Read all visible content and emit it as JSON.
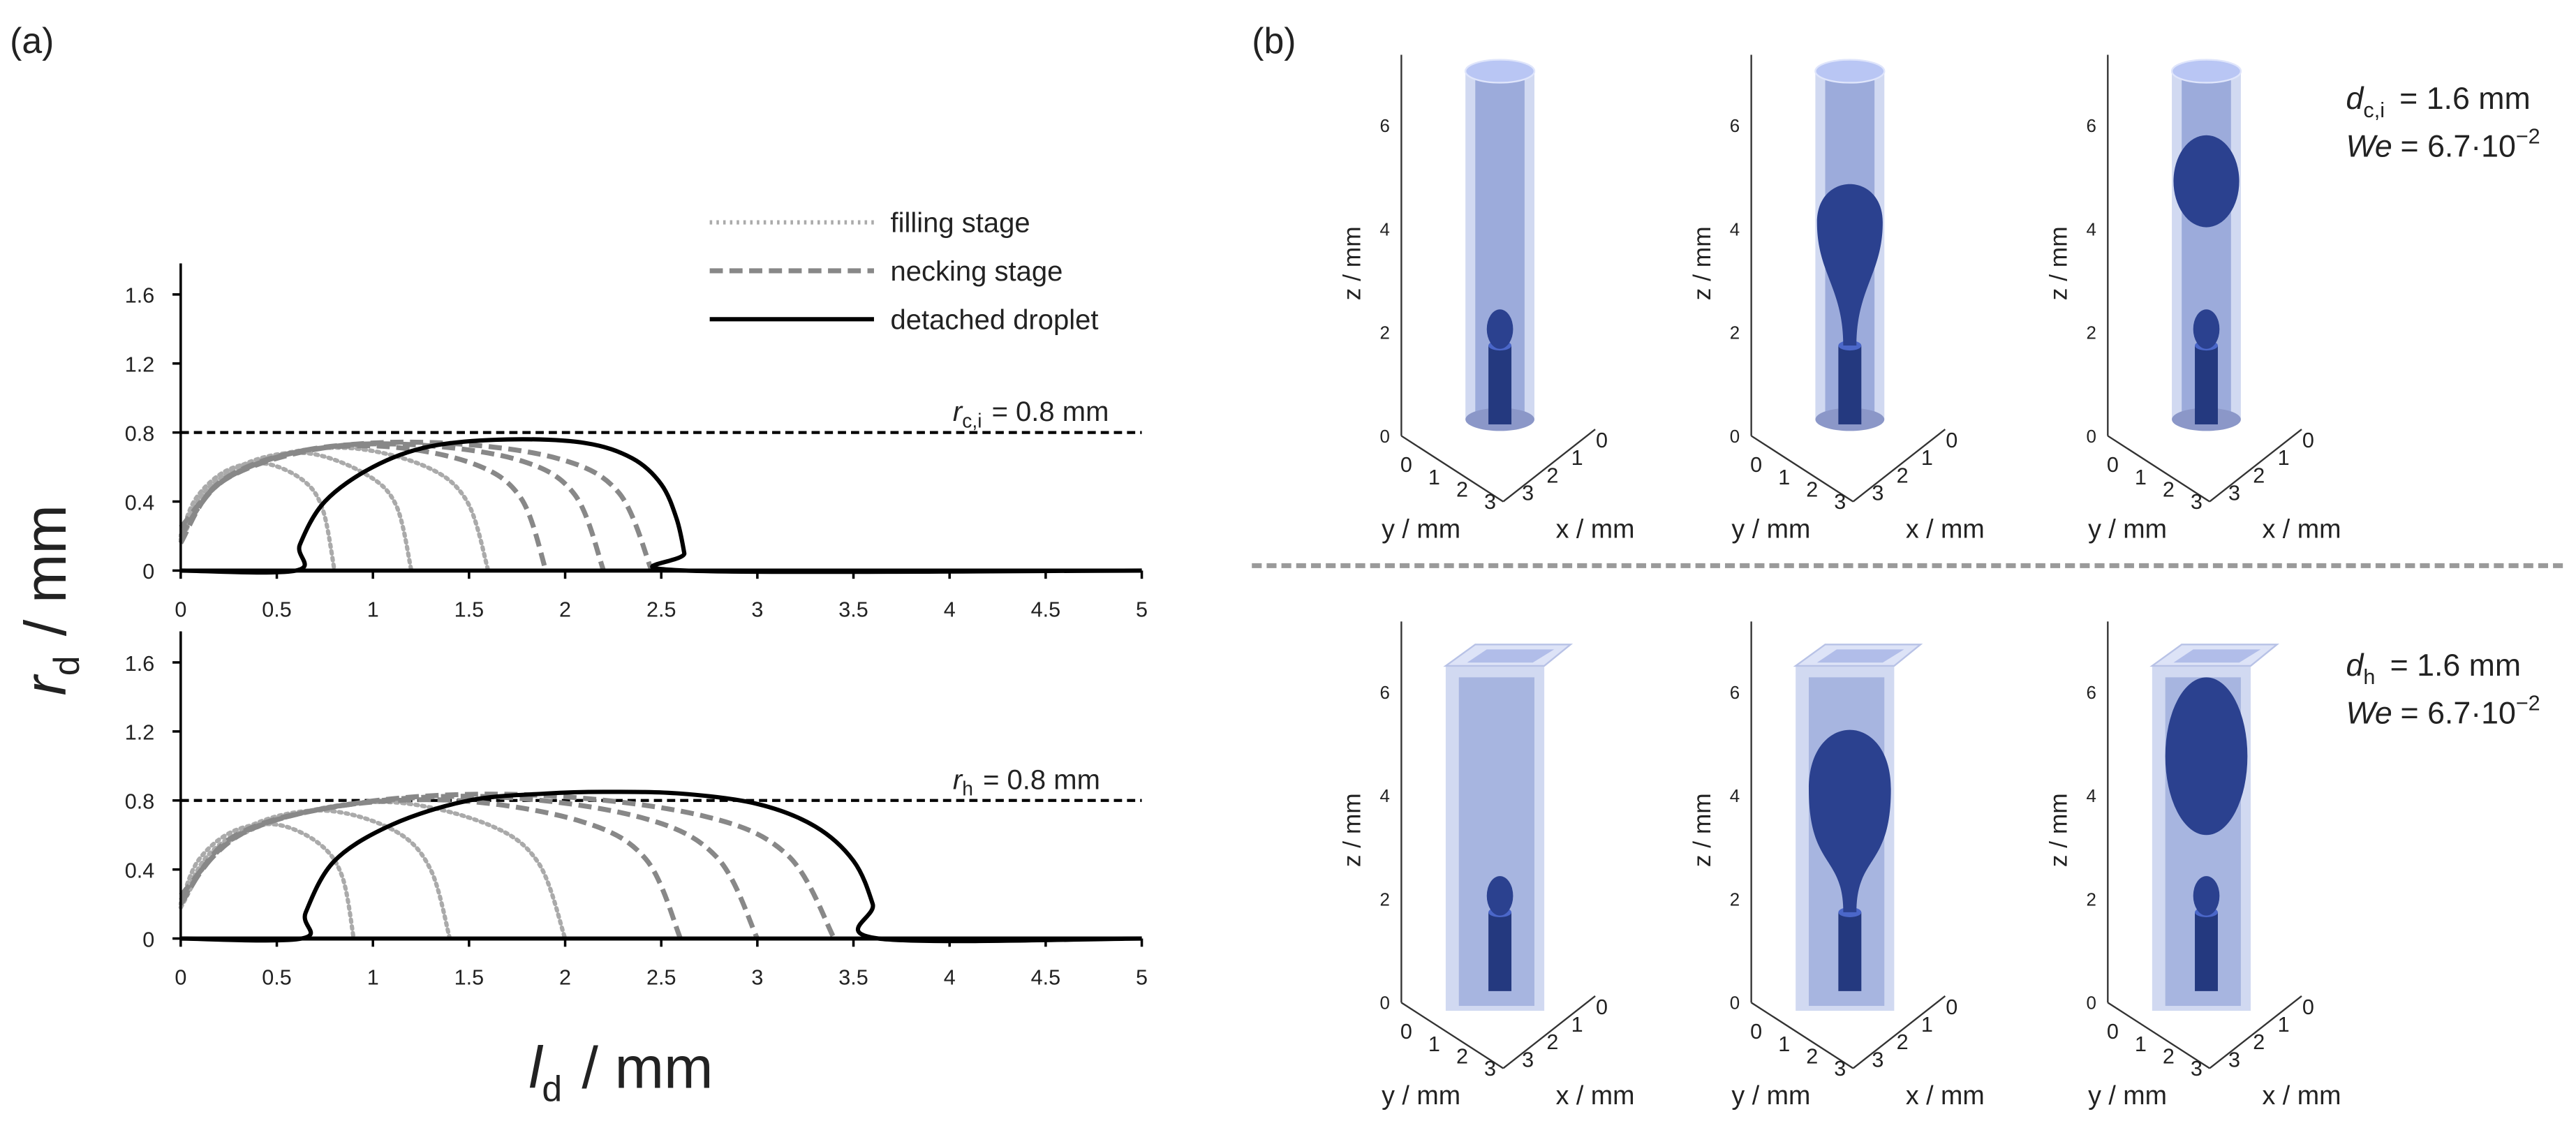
{
  "chart_data": [
    {
      "type": "line",
      "xlim": [
        0,
        5
      ],
      "ylim": [
        0,
        1.78
      ],
      "xticks": [
        0,
        0.5,
        1,
        1.5,
        2,
        2.5,
        3,
        3.5,
        4,
        4.5,
        5
      ],
      "yticks": [
        0,
        0.4,
        0.8,
        1.2,
        1.6
      ],
      "hline": {
        "value": 0.8,
        "symbol": "r",
        "sub": "c,i",
        "text": "= 0.8 mm"
      },
      "series": [
        {
          "name": "filling stage",
          "color": "#aaaaaa",
          "style": "dotted",
          "curves": [
            {
              "x": [
                0,
                0.08,
                0.24,
                0.44,
                0.64,
                0.74,
                0.8
              ],
              "values": [
                0.2,
                0.42,
                0.58,
                0.62,
                0.52,
                0.35,
                0
              ]
            },
            {
              "x": [
                0,
                0.12,
                0.36,
                0.66,
                0.96,
                1.12,
                1.2
              ],
              "values": [
                0.18,
                0.45,
                0.63,
                0.68,
                0.56,
                0.38,
                0
              ]
            },
            {
              "x": [
                0,
                0.16,
                0.48,
                0.88,
                1.28,
                1.49,
                1.6
              ],
              "values": [
                0.17,
                0.47,
                0.66,
                0.71,
                0.6,
                0.4,
                0
              ]
            }
          ]
        },
        {
          "name": "necking stage",
          "color": "#888888",
          "style": "dashed",
          "curves": [
            {
              "x": [
                0,
                0.19,
                0.57,
                1.05,
                1.52,
                1.77,
                1.9
              ],
              "values": [
                0.16,
                0.5,
                0.68,
                0.72,
                0.62,
                0.42,
                0
              ]
            },
            {
              "x": [
                0,
                0.22,
                0.66,
                1.2,
                1.76,
                2.05,
                2.2
              ],
              "values": [
                0.2,
                0.52,
                0.7,
                0.73,
                0.64,
                0.44,
                0
              ]
            },
            {
              "x": [
                0,
                0.25,
                0.74,
                1.35,
                1.96,
                2.28,
                2.45
              ],
              "values": [
                0.25,
                0.54,
                0.71,
                0.74,
                0.65,
                0.45,
                0
              ]
            }
          ]
        },
        {
          "name": "detached droplet",
          "color": "#000000",
          "style": "solid",
          "curves": [
            {
              "x": [
                0,
                0.6,
                0.62,
                0.75,
                1.0,
                1.3,
                1.7,
                2.1,
                2.35,
                2.5,
                2.58,
                2.62,
                2.63,
                5
              ],
              "values": [
                0,
                0,
                0.15,
                0.4,
                0.6,
                0.72,
                0.76,
                0.74,
                0.65,
                0.5,
                0.3,
                0.1,
                0,
                0
              ]
            }
          ]
        }
      ]
    },
    {
      "type": "line",
      "xlim": [
        0,
        5
      ],
      "ylim": [
        0,
        1.78
      ],
      "xticks": [
        0,
        0.5,
        1,
        1.5,
        2,
        2.5,
        3,
        3.5,
        4,
        4.5,
        5
      ],
      "yticks": [
        0,
        0.4,
        0.8,
        1.2,
        1.6
      ],
      "hline": {
        "value": 0.8,
        "symbol": "r",
        "sub": "h",
        "text": "= 0.8 mm"
      },
      "series": [
        {
          "color": "#aaaaaa",
          "style": "dotted",
          "curves": [
            {
              "x": [
                0,
                0.09,
                0.27,
                0.5,
                0.72,
                0.84,
                0.9
              ],
              "values": [
                0.2,
                0.45,
                0.62,
                0.66,
                0.55,
                0.36,
                0
              ]
            },
            {
              "x": [
                0,
                0.14,
                0.42,
                0.77,
                1.12,
                1.3,
                1.4
              ],
              "values": [
                0.18,
                0.48,
                0.68,
                0.74,
                0.62,
                0.4,
                0
              ]
            },
            {
              "x": [
                0,
                0.2,
                0.6,
                1.1,
                1.6,
                1.86,
                2.0
              ],
              "values": [
                0.18,
                0.52,
                0.72,
                0.79,
                0.66,
                0.44,
                0
              ]
            }
          ]
        },
        {
          "color": "#888888",
          "style": "dashed",
          "curves": [
            {
              "x": [
                0,
                0.26,
                0.78,
                1.43,
                2.08,
                2.42,
                2.6
              ],
              "values": [
                0.2,
                0.58,
                0.76,
                0.8,
                0.68,
                0.46,
                0
              ]
            },
            {
              "x": [
                0,
                0.3,
                0.9,
                1.65,
                2.4,
                2.79,
                3.0
              ],
              "values": [
                0.22,
                0.6,
                0.78,
                0.82,
                0.7,
                0.47,
                0
              ]
            },
            {
              "x": [
                0,
                0.34,
                1.02,
                1.87,
                2.72,
                3.16,
                3.4
              ],
              "values": [
                0.25,
                0.62,
                0.8,
                0.83,
                0.71,
                0.48,
                0
              ]
            }
          ]
        },
        {
          "color": "#000000",
          "style": "solid",
          "curves": [
            {
              "x": [
                0,
                0.63,
                0.65,
                0.8,
                1.1,
                1.5,
                1.9,
                2.2,
                2.6,
                3.0,
                3.3,
                3.5,
                3.6,
                3.63,
                5
              ],
              "values": [
                0,
                0,
                0.15,
                0.45,
                0.66,
                0.8,
                0.84,
                0.85,
                0.84,
                0.78,
                0.65,
                0.45,
                0.2,
                0,
                0
              ]
            }
          ]
        }
      ]
    }
  ],
  "panel_a": {
    "label": "(a)",
    "ylabel": {
      "symbol": "r",
      "sub": "d",
      "text": "/ mm"
    },
    "xlabel": {
      "symbol": "l",
      "sub": "d",
      "text": "/ mm"
    }
  },
  "panel_b": {
    "label": "(b)",
    "axes": {
      "z_label": "z / mm",
      "y_label": "y / mm",
      "x_label": "x / mm",
      "z_ticks": [
        0,
        2,
        4,
        6
      ],
      "y_ticks": [
        0,
        1,
        2,
        3
      ],
      "x_ticks": [
        0,
        1,
        2,
        3
      ]
    },
    "rows": [
      {
        "d": {
          "symbol": "d",
          "sub": "c,i",
          "text": "= 1.6 mm"
        },
        "we": {
          "symbol": "We",
          "text": "= 6.7·10",
          "exp": "−2"
        }
      },
      {
        "d": {
          "symbol": "d",
          "sub": "h",
          "text": "= 1.6 mm"
        },
        "we": {
          "symbol": "We",
          "text": "= 6.7·10",
          "exp": "−2"
        }
      }
    ]
  }
}
